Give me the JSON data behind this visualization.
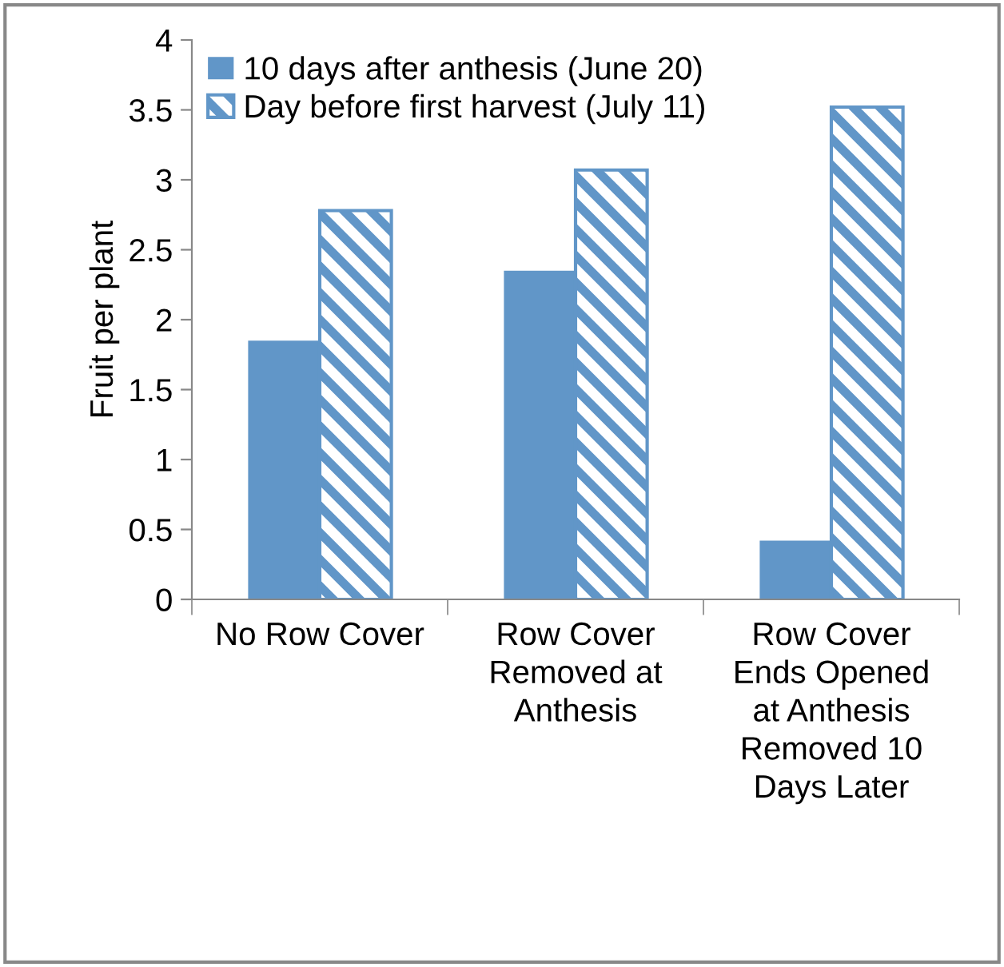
{
  "chart_data": {
    "type": "bar",
    "ylabel": "Fruit per plant",
    "categories": [
      "No Row Cover",
      "Row Cover\nRemoved at\nAnthesis",
      "Row Cover\nEnds Opened\nat Anthesis\nRemoved 10\nDays Later"
    ],
    "series": [
      {
        "name": "10 days after anthesis (June 20)",
        "color": "#6196c8",
        "values": [
          1.85,
          2.35,
          0.42
        ]
      },
      {
        "name": "Day before first harvest (July 11)",
        "color": "#6196c8",
        "values": [
          2.78,
          3.07,
          3.52
        ]
      }
    ],
    "ylim": [
      0,
      4
    ],
    "yticks": [
      0,
      0.5,
      1,
      1.5,
      2,
      2.5,
      3,
      3.5,
      4
    ],
    "grid": false,
    "legend": "top left"
  }
}
